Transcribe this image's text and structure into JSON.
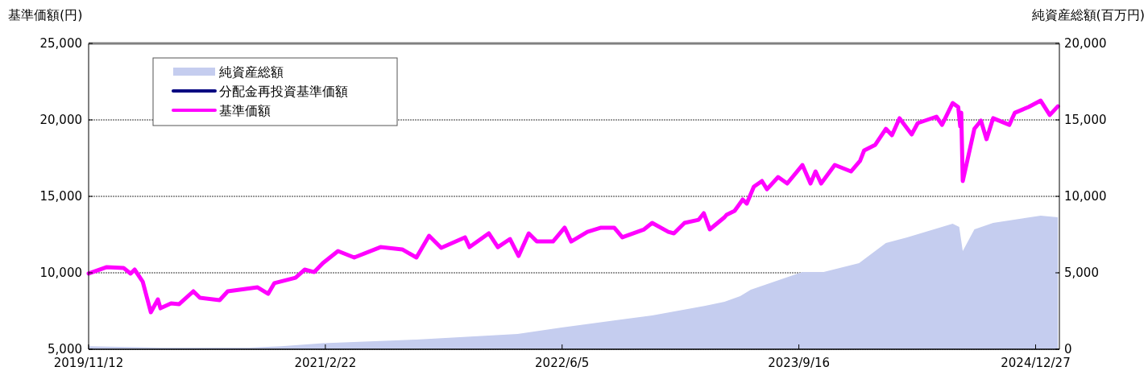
{
  "chart_data": {
    "type": "line",
    "ylabel": "基準価額(円)",
    "y2label": "純資産総額(百万円)",
    "xlim": [
      "2019-11-12",
      "2025-02-12"
    ],
    "xticks": [
      {
        "value": "2019-11-12",
        "label": "2019/11/12"
      },
      {
        "value": "2021-02-22",
        "label": "2021/2/22"
      },
      {
        "value": "2022-06-05",
        "label": "2022/6/5"
      },
      {
        "value": "2023-09-16",
        "label": "2023/9/16"
      },
      {
        "value": "2024-12-27",
        "label": "2024/12/27"
      }
    ],
    "ylim": [
      5000,
      25000
    ],
    "yticks": [
      {
        "value": 5000,
        "label": "5,000"
      },
      {
        "value": 10000,
        "label": "10,000"
      },
      {
        "value": 15000,
        "label": "15,000"
      },
      {
        "value": 20000,
        "label": "20,000"
      },
      {
        "value": 25000,
        "label": "25,000"
      }
    ],
    "y2lim": [
      0,
      20000
    ],
    "y2ticks": [
      0,
      {
        "value": 5000,
        "label": "5,000"
      },
      {
        "value": 10000,
        "label": "10,000"
      },
      {
        "value": 15000,
        "label": "15,000"
      },
      {
        "value": 20000,
        "label": "20,000"
      }
    ],
    "grid": "y",
    "legend": "top left",
    "series": [
      {
        "name": "純資産総額",
        "type": "area",
        "axis": "y2",
        "color": "#c5cdef",
        "x": [
          "2019-11-12",
          "2020-04-02",
          "2020-09-25",
          "2020-11-27",
          "2021-02-17",
          "2021-08-21",
          "2022-03-09",
          "2022-06-04",
          "2022-11-30",
          "2023-03-15",
          "2023-04-22",
          "2023-05-23",
          "2023-06-13",
          "2023-09-23",
          "2023-11-04",
          "2024-01-13",
          "2024-03-06",
          "2024-04-17",
          "2024-07-16",
          "2024-07-29",
          "2024-08-05",
          "2024-08-28",
          "2024-10-04",
          "2025-01-06",
          "2025-02-09"
        ],
        "values": [
          200,
          100,
          100,
          200,
          400,
          630,
          1000,
          1420,
          2210,
          2840,
          3100,
          3470,
          3890,
          5050,
          5050,
          5630,
          6950,
          7320,
          8210,
          8000,
          6420,
          7840,
          8260,
          8740,
          8630
        ]
      },
      {
        "name": "分配金再投資基準価額",
        "color": "#000080"
      },
      {
        "name": "基準価額",
        "color": "#ff00ff",
        "x": [
          "2019-11-12",
          "2019-12-18",
          "2020-01-20",
          "2020-02-03",
          "2020-02-11",
          "2020-02-27",
          "2020-03-14",
          "2020-03-28",
          "2020-04-02",
          "2020-04-23",
          "2020-05-09",
          "2020-06-06",
          "2020-06-19",
          "2020-07-28",
          "2020-08-13",
          "2020-10-11",
          "2020-11-01",
          "2020-11-13",
          "2020-12-25",
          "2021-01-12",
          "2021-01-31",
          "2021-02-17",
          "2021-03-19",
          "2021-04-20",
          "2021-06-11",
          "2021-07-24",
          "2021-08-21",
          "2021-09-15",
          "2021-10-09",
          "2021-11-25",
          "2021-12-04",
          "2022-01-11",
          "2022-01-29",
          "2022-02-22",
          "2022-03-11",
          "2022-03-31",
          "2022-04-16",
          "2022-05-18",
          "2022-06-10",
          "2022-06-23",
          "2022-07-25",
          "2022-08-21",
          "2022-09-16",
          "2022-10-02",
          "2022-11-14",
          "2022-11-30",
          "2023-01-01",
          "2023-01-12",
          "2023-02-02",
          "2023-03-02",
          "2023-03-12",
          "2023-03-24",
          "2023-04-22",
          "2023-04-26",
          "2023-05-12",
          "2023-05-28",
          "2023-06-05",
          "2023-06-19",
          "2023-07-05",
          "2023-07-15",
          "2023-08-06",
          "2023-08-24",
          "2023-09-23",
          "2023-10-09",
          "2023-10-19",
          "2023-10-30",
          "2023-11-26",
          "2023-12-28",
          "2024-01-15",
          "2024-01-23",
          "2024-02-14",
          "2024-03-06",
          "2024-03-18",
          "2024-04-02",
          "2024-04-26",
          "2024-05-08",
          "2024-06-14",
          "2024-06-25",
          "2024-07-16",
          "2024-07-27",
          "2024-07-31",
          "2024-08-02",
          "2024-08-05",
          "2024-08-28",
          "2024-09-10",
          "2024-09-21",
          "2024-10-04",
          "2024-11-05",
          "2024-11-16",
          "2024-12-13",
          "2025-01-06",
          "2025-01-24",
          "2025-02-09"
        ],
        "values": [
          9950,
          10370,
          10320,
          9950,
          10210,
          9420,
          7420,
          8260,
          7680,
          8000,
          7950,
          8790,
          8370,
          8210,
          8790,
          9050,
          8630,
          9320,
          9680,
          10210,
          10050,
          10630,
          11420,
          11000,
          11680,
          11530,
          11000,
          12420,
          11630,
          12320,
          11680,
          12580,
          11680,
          12210,
          11100,
          12580,
          12050,
          12050,
          12950,
          12050,
          12680,
          12950,
          12950,
          12320,
          12840,
          13260,
          12680,
          12580,
          13260,
          13470,
          13900,
          12840,
          13630,
          13790,
          14050,
          14790,
          14530,
          15630,
          16000,
          15470,
          16260,
          15840,
          17050,
          15840,
          16630,
          15840,
          17050,
          16630,
          17320,
          18000,
          18370,
          19420,
          19000,
          20110,
          19050,
          19790,
          20210,
          19680,
          21100,
          20840,
          19580,
          20470,
          16000,
          19420,
          19950,
          18740,
          20110,
          19680,
          20470,
          20840,
          21260,
          20320,
          20890
        ]
      }
    ]
  }
}
